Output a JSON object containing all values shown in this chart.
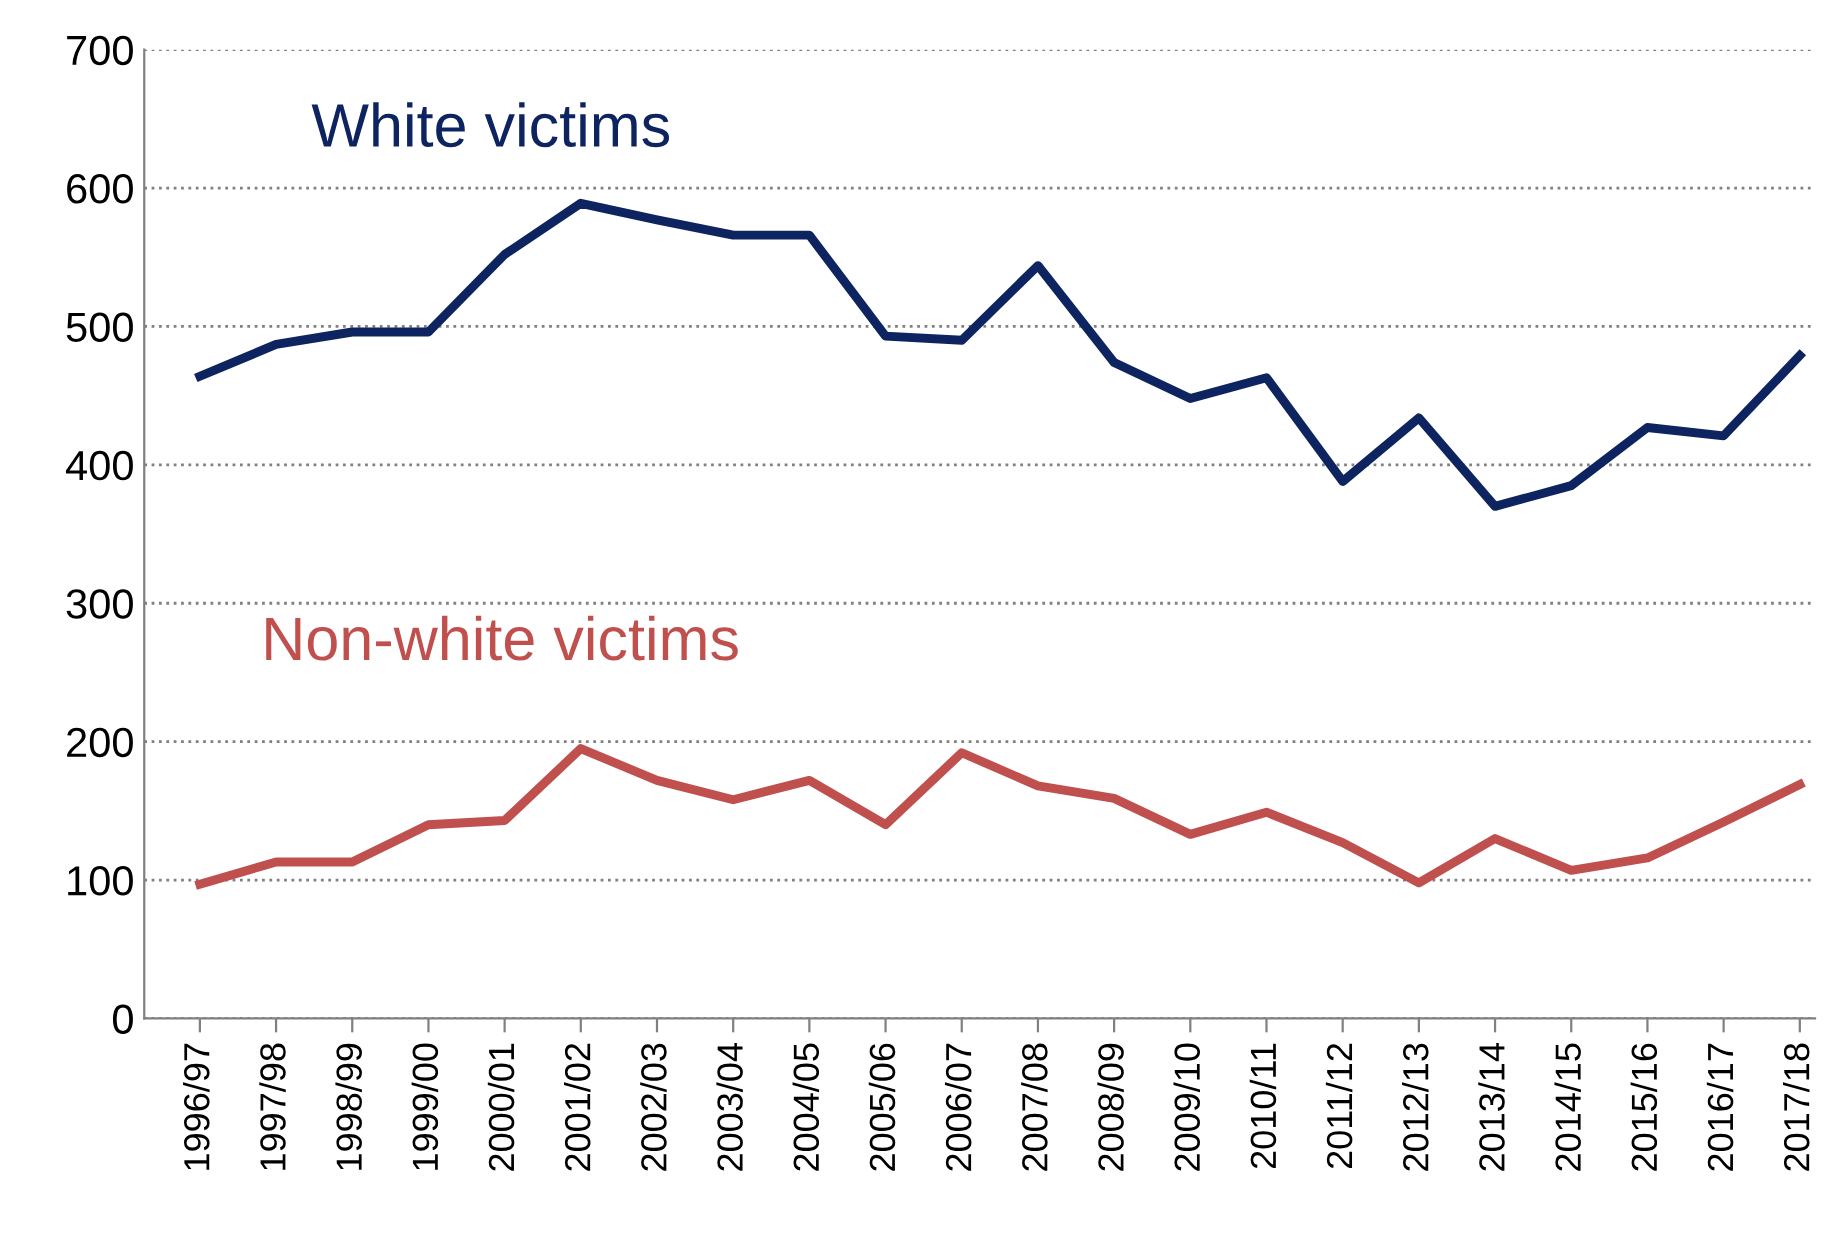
{
  "chart_data": {
    "type": "line",
    "categories": [
      "1996/97",
      "1997/98",
      "1998/99",
      "1999/00",
      "2000/01",
      "2001/02",
      "2002/03",
      "2003/04",
      "2004/05",
      "2005/06",
      "2006/07",
      "2007/08",
      "2008/09",
      "2009/10",
      "2010/11",
      "2011/12",
      "2012/13",
      "2013/14",
      "2014/15",
      "2015/16",
      "2016/17",
      "2017/18"
    ],
    "series": [
      {
        "name": "White victims",
        "color": "#0d2461",
        "values": [
          464,
          487,
          496,
          496,
          552,
          589,
          577,
          566,
          566,
          493,
          490,
          544,
          474,
          448,
          463,
          388,
          434,
          370,
          385,
          427,
          421,
          479
        ]
      },
      {
        "name": "Non-white victims",
        "color": "#c0504d",
        "values": [
          97,
          113,
          113,
          140,
          143,
          195,
          172,
          158,
          172,
          140,
          192,
          168,
          159,
          133,
          149,
          127,
          98,
          130,
          107,
          116,
          142,
          169
        ]
      }
    ],
    "ylim": [
      0,
      700
    ],
    "yticks": [
      0,
      100,
      200,
      300,
      400,
      500,
      600,
      700
    ],
    "grid": "y",
    "marker": "none",
    "line_style": "solid"
  }
}
